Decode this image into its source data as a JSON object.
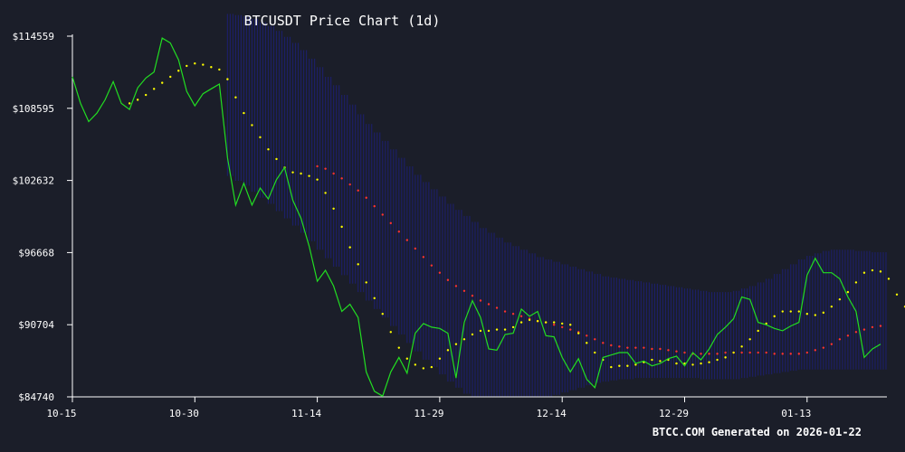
{
  "chart_data": {
    "type": "line",
    "title": "BTCUSDT Price Chart (1d)",
    "footer": "BTCC.COM Generated on 2026-01-22",
    "x_tick_labels": [
      "10-15",
      "10-30",
      "11-14",
      "11-29",
      "12-14",
      "12-29",
      "01-13"
    ],
    "y_tick_labels": [
      "$84740",
      "$90704",
      "$96668",
      "$102632",
      "$108595",
      "$114559"
    ],
    "ylim": [
      84740,
      114559
    ],
    "colors": {
      "background": "#1b1e29",
      "price": "#22dd22",
      "ma_short": "#ffff00",
      "ma_long": "#ff3333",
      "band": "#1c1f66",
      "axis": "#ffffff"
    },
    "series": [
      {
        "key": "price",
        "start_index": 0,
        "values": [
          111200,
          109000,
          107500,
          108200,
          109300,
          110800,
          109000,
          108500,
          110300,
          111100,
          111600,
          114400,
          114000,
          112600,
          110000,
          108800,
          109800,
          110200,
          110600,
          104500,
          100600,
          102400,
          100600,
          102000,
          101100,
          102700,
          103700,
          101000,
          99500,
          97200,
          94300,
          95200,
          93900,
          91800,
          92400,
          91300,
          86800,
          85200,
          84800,
          86800,
          88000,
          86700,
          90000,
          90800,
          90500,
          90400,
          90000,
          86300,
          90900,
          92700,
          91300,
          88700,
          88600,
          89900,
          90000,
          92000,
          91400,
          91800,
          89800,
          89700,
          88000,
          86800,
          87900,
          86200,
          85500,
          88000,
          88200,
          88400,
          88400,
          87500,
          87700,
          87300,
          87500,
          87900,
          88100,
          87300,
          88400,
          87800,
          88700,
          89900,
          90500,
          91200,
          93000,
          92800,
          90900,
          90700,
          90400,
          90200,
          90600,
          90900,
          94800,
          96200,
          95000,
          95000,
          94500,
          93000,
          91800,
          88000,
          88700,
          89100
        ]
      },
      {
        "key": "ma_short",
        "start_index": 7,
        "values": [
          109000,
          109300,
          109700,
          110200,
          110700,
          111200,
          111700,
          112100,
          112300,
          112200,
          112000,
          111800,
          111000,
          109500,
          108200,
          107200,
          106200,
          105200,
          104400,
          103700,
          103300,
          103200,
          103000,
          102700,
          101600,
          100300,
          98800,
          97100,
          95700,
          94200,
          92900,
          91600,
          90100,
          88800,
          87900,
          87400,
          87100,
          87200,
          87900,
          88600,
          89100,
          89500,
          89900,
          90200,
          90200,
          90300,
          90300,
          90500,
          90900,
          91100,
          91000,
          90900,
          90900,
          90800,
          90700,
          90000,
          89200,
          88400,
          87800,
          87200,
          87300,
          87300,
          87400,
          87600,
          87800,
          87700,
          87800,
          87500,
          87500,
          87400,
          87500,
          87600,
          87800,
          88000,
          88400,
          88900,
          89500,
          90200,
          90800,
          91400,
          91800,
          91800,
          91800,
          91600,
          91500,
          91700,
          92200,
          92800,
          93400,
          94200,
          95000,
          95200,
          95100,
          94500,
          93200,
          92200
        ]
      },
      {
        "key": "ma_long",
        "start_index": 30,
        "values": [
          103800,
          103600,
          103200,
          102800,
          102300,
          101800,
          101200,
          100500,
          99800,
          99100,
          98400,
          97700,
          97000,
          96300,
          95600,
          95000,
          94400,
          93900,
          93500,
          93100,
          92700,
          92400,
          92100,
          91800,
          91600,
          91400,
          91200,
          91000,
          90900,
          90700,
          90500,
          90300,
          90100,
          89800,
          89500,
          89200,
          89000,
          88900,
          88800,
          88800,
          88800,
          88700,
          88700,
          88600,
          88500,
          88400,
          88300,
          88300,
          88300,
          88300,
          88400,
          88400,
          88400,
          88400,
          88400,
          88400,
          88300,
          88300,
          88300,
          88300,
          88400,
          88600,
          88800,
          89100,
          89500,
          89800,
          90100,
          90300,
          90500,
          90600
        ]
      },
      {
        "key": "band",
        "start_index": 19,
        "upper": [
          116400,
          116300,
          116200,
          116000,
          115700,
          115400,
          115000,
          114500,
          114000,
          113400,
          112700,
          112000,
          111200,
          110500,
          109700,
          108900,
          108100,
          107300,
          106600,
          105900,
          105200,
          104500,
          103800,
          103100,
          102500,
          101900,
          101300,
          100700,
          100200,
          99700,
          99200,
          98700,
          98300,
          97900,
          97500,
          97200,
          96900,
          96600,
          96300,
          96100,
          95900,
          95700,
          95500,
          95300,
          95100,
          94900,
          94700,
          94600,
          94500,
          94400,
          94300,
          94200,
          94100,
          94000,
          93900,
          93800,
          93700,
          93600,
          93500,
          93400,
          93400,
          93400,
          93500,
          93700,
          93900,
          94200,
          94500,
          94900,
          95300,
          95700,
          96100,
          96400,
          96600,
          96800,
          96900,
          96900,
          96900,
          96800,
          96800,
          96700,
          96700
        ],
        "lower": [
          103000,
          102600,
          102200,
          101700,
          101200,
          100700,
          100100,
          99500,
          98900,
          98300,
          97600,
          96900,
          96200,
          95500,
          94800,
          94100,
          93400,
          92700,
          92000,
          91300,
          90600,
          89900,
          89200,
          88500,
          87800,
          87200,
          86600,
          86000,
          85500,
          85000,
          84740,
          84740,
          84740,
          84740,
          84740,
          84740,
          84740,
          84740,
          84740,
          84740,
          84900,
          85100,
          85300,
          85500,
          85700,
          85900,
          86000,
          86100,
          86200,
          86200,
          86300,
          86300,
          86300,
          86300,
          86300,
          86300,
          86300,
          86300,
          86200,
          86200,
          86200,
          86200,
          86200,
          86300,
          86400,
          86500,
          86600,
          86700,
          86800,
          86900,
          87000,
          87000,
          87000,
          87000,
          87000,
          87000,
          87000,
          87000,
          87000,
          87000,
          87000
        ]
      }
    ]
  }
}
